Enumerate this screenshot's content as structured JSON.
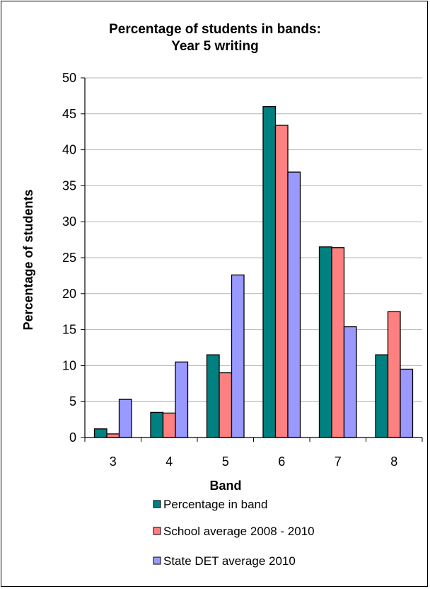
{
  "chart_data": {
    "type": "bar",
    "title_lines": [
      "Percentage of students in bands:",
      "Year 5 writing"
    ],
    "xlabel": "Band",
    "ylabel": "Percentage of students",
    "categories": [
      "3",
      "4",
      "5",
      "6",
      "7",
      "8"
    ],
    "ylim": [
      0,
      50
    ],
    "yticks": [
      "0",
      "5",
      "10",
      "15",
      "20",
      "25",
      "30",
      "35",
      "40",
      "45",
      "50"
    ],
    "grid": true,
    "legend_position": "bottom",
    "series": [
      {
        "name": "Percentage in band",
        "color": "#008080",
        "values": [
          1.2,
          3.5,
          11.5,
          46.0,
          26.5,
          11.5
        ]
      },
      {
        "name": "School average 2008 - 2010",
        "color": "#FF8080",
        "values": [
          0.5,
          3.4,
          9.0,
          43.4,
          26.4,
          17.5
        ]
      },
      {
        "name": "State DET average 2010",
        "color": "#9999FF",
        "values": [
          5.3,
          10.5,
          22.6,
          36.9,
          15.4,
          9.5
        ]
      }
    ]
  }
}
